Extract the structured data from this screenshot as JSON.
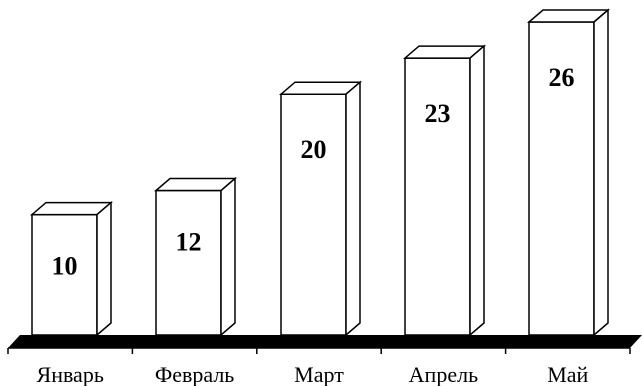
{
  "chart_data": {
    "type": "bar",
    "style": "3d",
    "categories": [
      "Январь",
      "Февраль",
      "Март",
      "Апрель",
      "Май"
    ],
    "values": [
      10,
      12,
      20,
      23,
      26
    ],
    "value_labels": [
      "10",
      "12",
      "20",
      "23",
      "26"
    ],
    "title": "",
    "xlabel": "",
    "ylabel": "",
    "ylim": [
      0,
      26
    ],
    "grid": false,
    "legend": "none",
    "bar_fill": "#ffffff",
    "floor_fill": "#000000",
    "stroke": "#000000"
  }
}
